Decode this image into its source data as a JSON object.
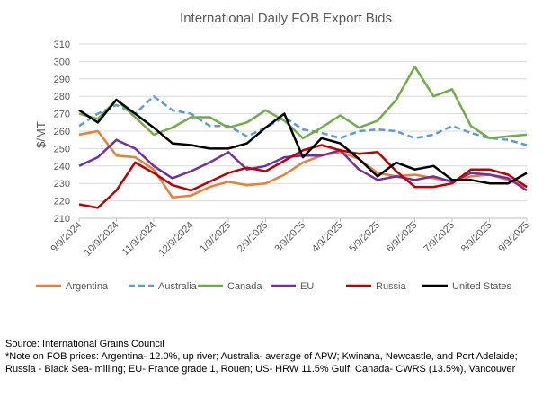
{
  "chart_data": {
    "type": "line",
    "title": "International Daily FOB Export Bids",
    "xlabel": "",
    "ylabel": "$/MT",
    "ylim": [
      210,
      310
    ],
    "yticks": [
      210,
      220,
      230,
      240,
      250,
      260,
      270,
      280,
      290,
      300,
      310
    ],
    "xtick_labels": [
      "9/9/2024",
      "10/9/2024",
      "11/9/2024",
      "12/9/2024",
      "1/9/2025",
      "2/9/2025",
      "3/9/2025",
      "4/9/2025",
      "5/9/2025",
      "6/9/2025",
      "7/9/2025",
      "8/9/2025",
      "9/9/2025"
    ],
    "x_note": "semi-monthly samples from 9/9/2024 to 9/9/2025 (index 0-24)",
    "grid": true,
    "legend_position": "bottom",
    "series": [
      {
        "name": "Argentina",
        "color": "#ED7D31",
        "dashed": false,
        "values": [
          258,
          260,
          246,
          245,
          238,
          222,
          223,
          228,
          231,
          229,
          230,
          235,
          242,
          246,
          248,
          244,
          236,
          234,
          235,
          233,
          231,
          234,
          235,
          232,
          228
        ]
      },
      {
        "name": "Australia",
        "color": "#5B9BD5",
        "dashed": true,
        "values": [
          263,
          270,
          275,
          270,
          280,
          272,
          270,
          263,
          263,
          257,
          262,
          268,
          261,
          259,
          256,
          260,
          261,
          260,
          256,
          258,
          263,
          259,
          256,
          255,
          252
        ]
      },
      {
        "name": "Canada",
        "color": "#70AD47",
        "dashed": false,
        "values": [
          270,
          267,
          278,
          268,
          258,
          262,
          268,
          268,
          262,
          265,
          272,
          266,
          256,
          262,
          269,
          262,
          266,
          278,
          297,
          280,
          284,
          263,
          256,
          257,
          258
        ]
      },
      {
        "name": "EU",
        "color": "#7030A0",
        "dashed": false,
        "values": [
          240,
          245,
          255,
          250,
          240,
          233,
          237,
          242,
          248,
          238,
          240,
          245,
          246,
          246,
          249,
          238,
          232,
          234,
          232,
          234,
          231,
          236,
          235,
          233,
          226
        ]
      },
      {
        "name": "Russia",
        "color": "#C00000",
        "dashed": false,
        "values": [
          218,
          216,
          226,
          242,
          236,
          229,
          226,
          231,
          236,
          239,
          237,
          243,
          249,
          252,
          249,
          247,
          248,
          237,
          228,
          228,
          230,
          238,
          238,
          235,
          228
        ]
      },
      {
        "name": "United States",
        "color": "#000000",
        "dashed": false,
        "values": [
          272,
          265,
          278,
          270,
          262,
          253,
          252,
          250,
          250,
          253,
          262,
          270,
          245,
          256,
          253,
          244,
          234,
          242,
          238,
          240,
          232,
          232,
          230,
          230,
          236
        ]
      }
    ]
  },
  "notes": {
    "source": "Source: International Grains Council",
    "note_line1": "*Note on FOB prices: Argentina- 12.0%, up river; Australia- average of APW; Kwinana, Newcastle, and Port Adelaide;",
    "note_line2": "Russia - Black Sea- milling; EU- France grade 1, Rouen; US- HRW 11.5% Gulf; Canada- CWRS (13.5%), Vancouver"
  }
}
